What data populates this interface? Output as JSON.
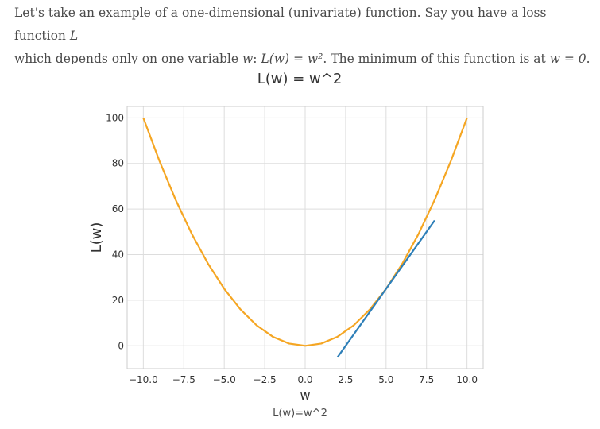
{
  "intro": {
    "line1_text": "Let's take an example of a one-dimensional (univariate) function. Say you have a loss function ",
    "line1_var": "L",
    "line2_pre": "which depends only on one variable ",
    "line2_var": "w",
    "line2_mid": ": ",
    "line2_eq": "L(w) = w²",
    "line2_post": ". The minimum of this function is at ",
    "line2_min": "w = 0",
    "line2_end": "."
  },
  "chart_data": {
    "type": "line",
    "title": "L(w) = w^2",
    "xlabel": "w",
    "ylabel": "L(w)",
    "xlim": [
      -11,
      11
    ],
    "ylim": [
      -10,
      105
    ],
    "xticks": [
      -10.0,
      -7.5,
      -5.0,
      -2.5,
      0.0,
      2.5,
      5.0,
      7.5,
      10.0
    ],
    "xtick_labels": [
      "−10.0",
      "−7.5",
      "−5.0",
      "−2.5",
      "0.0",
      "2.5",
      "5.0",
      "7.5",
      "10.0"
    ],
    "yticks": [
      0,
      20,
      40,
      60,
      80,
      100
    ],
    "ytick_labels": [
      "0",
      "20",
      "40",
      "60",
      "80",
      "100"
    ],
    "grid": true,
    "series": [
      {
        "color": "#f5a623",
        "x": [
          -10.0,
          -9.0,
          -8.0,
          -7.0,
          -6.0,
          -5.0,
          -4.0,
          -3.0,
          -2.0,
          -1.0,
          0.0,
          1.0,
          2.0,
          3.0,
          4.0,
          5.0,
          6.0,
          7.0,
          8.0,
          9.0,
          10.0
        ],
        "y": [
          100,
          81,
          64,
          49,
          36,
          25,
          16,
          9,
          4,
          1,
          0,
          1,
          4,
          9,
          16,
          25,
          36,
          49,
          64,
          81,
          100
        ]
      },
      {
        "color": "#2e7fb8",
        "x": [
          2.0,
          8.0
        ],
        "y": [
          -5,
          55
        ]
      }
    ]
  },
  "caption": "L(w)=w^2"
}
